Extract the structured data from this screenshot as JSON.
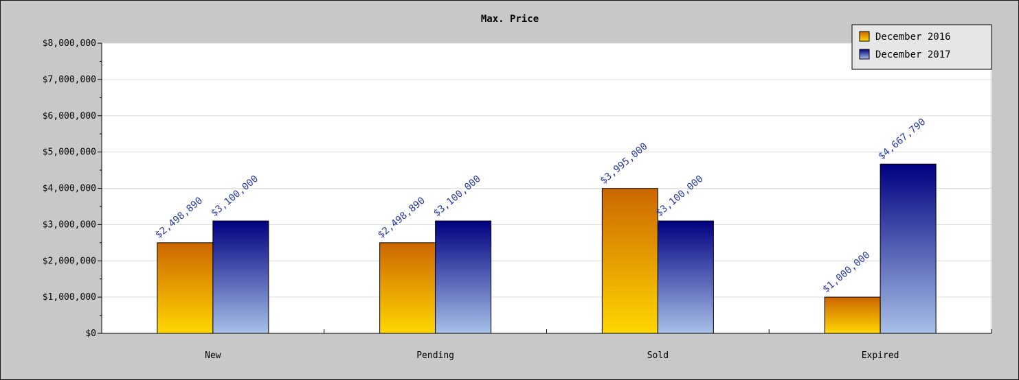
{
  "chart_data": {
    "type": "bar",
    "title": "Max. Price",
    "xlabel": "",
    "ylabel": "",
    "categories": [
      "New",
      "Pending",
      "Sold",
      "Expired"
    ],
    "series": [
      {
        "name": "December 2016",
        "values": [
          2498890,
          2498890,
          3995000,
          1000000
        ],
        "labels": [
          "$2,498,890",
          "$2,498,890",
          "$3,995,000",
          "$1,000,000"
        ],
        "color_top": "#cc6600",
        "color_bottom": "#ffd700"
      },
      {
        "name": "December 2017",
        "values": [
          3100000,
          3100000,
          3100000,
          4667790
        ],
        "labels": [
          "$3,100,000",
          "$3,100,000",
          "$3,100,000",
          "$4,667,790"
        ],
        "color_top": "#000080",
        "color_bottom": "#a8c0e8"
      }
    ],
    "ylim": [
      0,
      8000000
    ],
    "yticks": [
      0,
      1000000,
      2000000,
      3000000,
      4000000,
      5000000,
      6000000,
      7000000,
      8000000
    ],
    "ytick_labels": [
      "$0",
      "$1,000,000",
      "$2,000,000",
      "$3,000,000",
      "$4,000,000",
      "$5,000,000",
      "$6,000,000",
      "$7,000,000",
      "$8,000,000"
    ],
    "grid": true,
    "legend_position": "top-right"
  }
}
